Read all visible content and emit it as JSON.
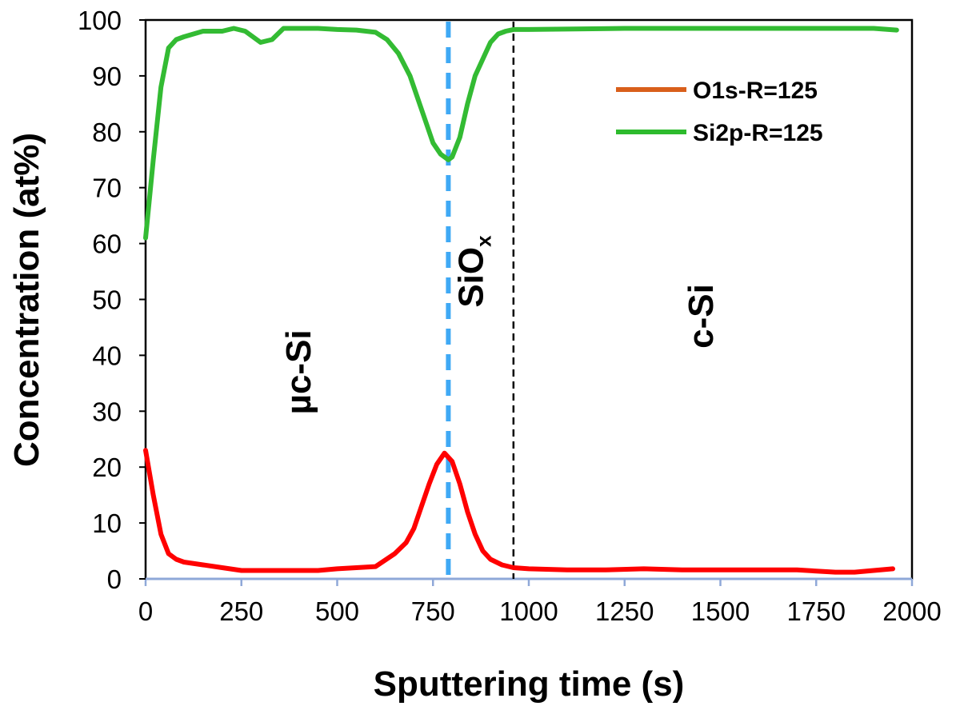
{
  "chart_data": {
    "type": "line",
    "xlabel": "Sputtering time (s)",
    "ylabel": "Concentration (at%)",
    "xlim": [
      0,
      2000
    ],
    "ylim": [
      0,
      100
    ],
    "x_ticks": [
      0,
      250,
      500,
      750,
      1000,
      1250,
      1500,
      1750,
      2000
    ],
    "y_ticks": [
      0,
      10,
      20,
      30,
      40,
      50,
      60,
      70,
      80,
      90,
      100
    ],
    "grid": false,
    "legend_position": "top-right",
    "series": [
      {
        "name": "O1s-R=125",
        "legend_color": "#d95f1b",
        "line_color": "#ff0000",
        "x": [
          0,
          20,
          40,
          60,
          80,
          100,
          150,
          200,
          250,
          300,
          350,
          400,
          450,
          500,
          550,
          600,
          650,
          680,
          700,
          720,
          740,
          760,
          780,
          800,
          820,
          840,
          860,
          880,
          900,
          930,
          960,
          1000,
          1100,
          1200,
          1300,
          1400,
          1500,
          1600,
          1700,
          1800,
          1850,
          1900,
          1950
        ],
        "y": [
          23,
          15,
          8,
          4.5,
          3.5,
          3,
          2.5,
          2,
          1.5,
          1.5,
          1.5,
          1.5,
          1.5,
          1.8,
          2,
          2.2,
          4.5,
          6.5,
          9,
          13,
          17,
          20.5,
          22.5,
          21,
          17,
          12,
          8,
          5,
          3.5,
          2.5,
          2,
          1.8,
          1.6,
          1.6,
          1.8,
          1.6,
          1.6,
          1.6,
          1.6,
          1.2,
          1.2,
          1.5,
          1.8
        ]
      },
      {
        "name": "Si2p-R=125",
        "legend_color": "#2dbb2d",
        "line_color": "#33bb33",
        "x": [
          0,
          20,
          40,
          60,
          80,
          100,
          150,
          200,
          230,
          260,
          300,
          330,
          360,
          400,
          450,
          500,
          550,
          600,
          630,
          660,
          690,
          710,
          730,
          750,
          770,
          790,
          800,
          820,
          840,
          860,
          880,
          900,
          920,
          940,
          960,
          1000,
          1250,
          1500,
          1750,
          1900,
          1960
        ],
        "y": [
          61,
          75,
          88,
          95,
          96.5,
          97,
          98,
          98,
          98.5,
          98,
          96,
          96.5,
          98.5,
          98.5,
          98.5,
          98.3,
          98.2,
          97.8,
          96.5,
          94,
          90,
          86,
          82,
          78,
          76,
          75,
          75.5,
          79,
          85,
          90,
          93,
          96,
          97.5,
          98,
          98.3,
          98.3,
          98.5,
          98.5,
          98.5,
          98.5,
          98.2
        ]
      }
    ],
    "reference_lines": [
      {
        "x": 790,
        "color": "#3fa9f5",
        "style": "dashed"
      },
      {
        "x": 960,
        "color": "#000000",
        "style": "dashed"
      }
    ],
    "annotations": [
      {
        "text": "µc-Si",
        "x": 430,
        "y": 37,
        "rotation": -90
      },
      {
        "text": "SiO",
        "sub": "x",
        "x": 880,
        "y": 55,
        "rotation": -90
      },
      {
        "text": "c-Si",
        "x": 1480,
        "y": 47,
        "rotation": -90
      }
    ]
  }
}
